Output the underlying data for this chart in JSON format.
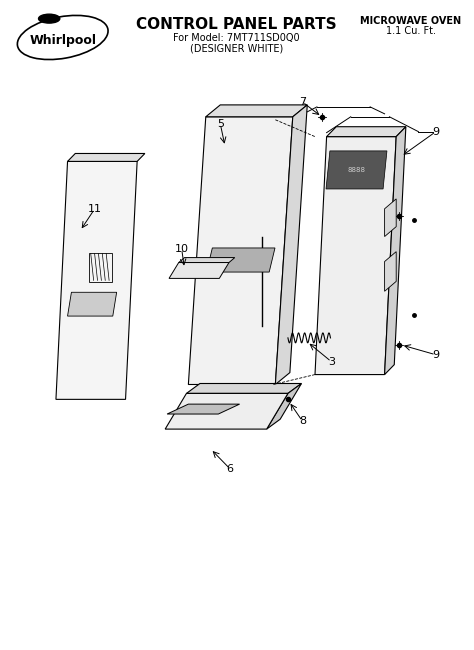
{
  "title": "CONTROL PANEL PARTS",
  "subtitle1": "For Model: 7MT711SD0Q0",
  "subtitle2": "(DESIGNER WHITE)",
  "top_right_line1": "MICROWAVE OVEN",
  "top_right_line2": "1.1 Cu. Ft.",
  "bg_color": "#ffffff",
  "figsize": [
    4.74,
    6.5
  ],
  "dpi": 100
}
